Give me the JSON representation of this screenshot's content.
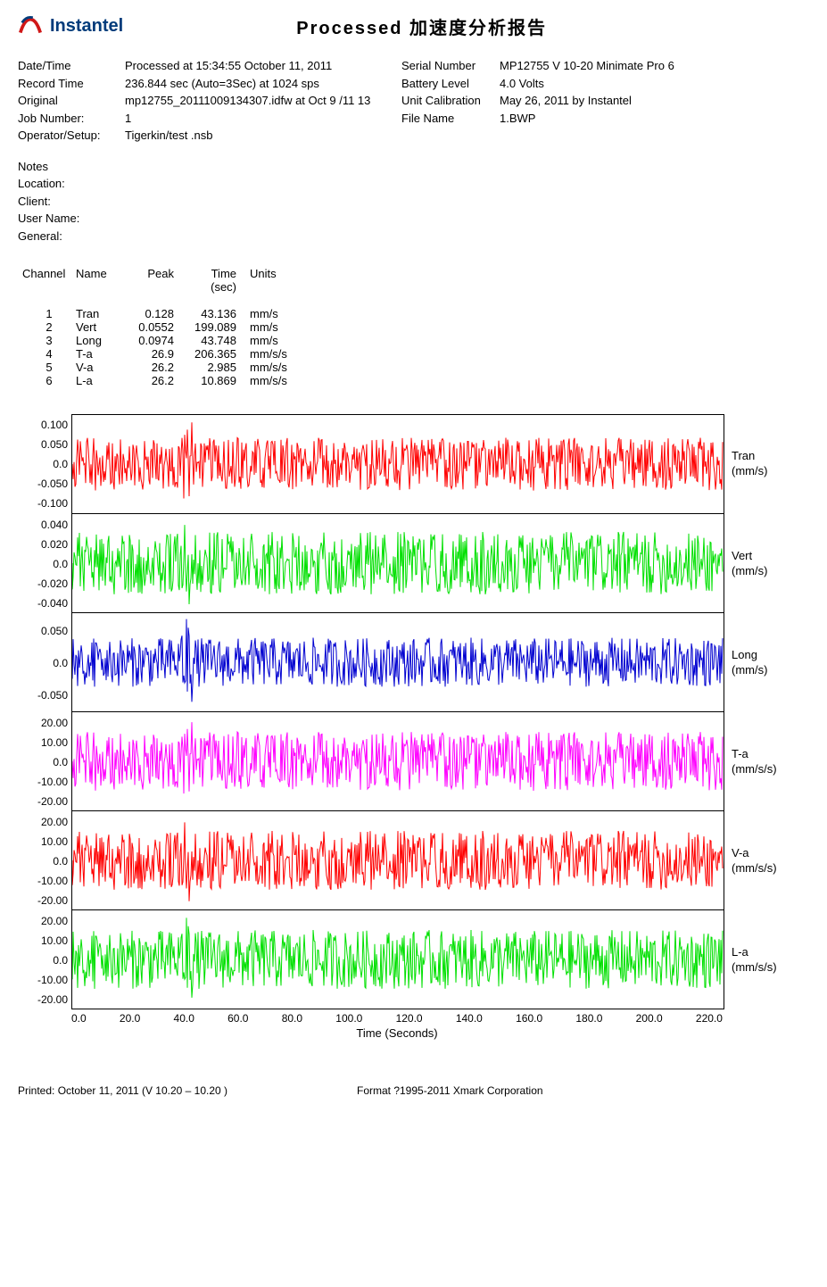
{
  "header": {
    "brand": "Instantel",
    "title": "Processed 加速度分析报告"
  },
  "meta": {
    "r1": {
      "l1": "Date/Time",
      "v1": "Processed at 15:34:55 October 11, 2011",
      "l2": "Serial Number",
      "v2": "MP12755 V 10-20 Minimate Pro 6"
    },
    "r2": {
      "l1": "Record Time",
      "v1": "236.844 sec (Auto=3Sec) at 1024 sps",
      "l2": "Battery Level",
      "v2": "4.0 Volts"
    },
    "r3": {
      "l1": "Original",
      "v1": "mp12755_20111009134307.idfw at Oct 9 /11 13",
      "l2": "Unit Calibration",
      "v2": "May 26, 2011 by Instantel"
    },
    "r4": {
      "l1": "Job Number:",
      "v1": "1",
      "l2": "File Name",
      "v2": "1.BWP"
    },
    "r5": {
      "l1": "Operator/Setup:",
      "v1": "Tigerkin/test  .nsb"
    }
  },
  "notes": {
    "n1": "Notes",
    "n2": "Location:",
    "n3": "Client:",
    "n4": "User Name:",
    "n5": "General:"
  },
  "table": {
    "headers": {
      "c1": "Channel",
      "c2": "Name",
      "c3": "Peak",
      "c4": "Time",
      "c4b": "(sec)",
      "c5": "Units"
    },
    "rows": [
      {
        "c1": "1",
        "c2": "Tran",
        "c3": "0.128",
        "c4": "43.136",
        "c5": "mm/s"
      },
      {
        "c1": "2",
        "c2": "Vert",
        "c3": "0.0552",
        "c4": "199.089",
        "c5": "mm/s"
      },
      {
        "c1": "3",
        "c2": "Long",
        "c3": "0.0974",
        "c4": "43.748",
        "c5": "mm/s"
      },
      {
        "c1": "4",
        "c2": "T-a",
        "c3": "26.9",
        "c4": "206.365",
        "c5": "mm/s/s"
      },
      {
        "c1": "5",
        "c2": "V-a",
        "c3": "26.2",
        "c4": "2.985",
        "c5": "mm/s/s"
      },
      {
        "c1": "6",
        "c2": "L-a",
        "c3": "26.2",
        "c4": "10.869",
        "c5": "mm/s/s"
      }
    ]
  },
  "charts": [
    {
      "name": "Tran",
      "unit": "(mm/s)",
      "color": "#ff0000",
      "yticks": [
        "0.100",
        "0.050",
        "0.0",
        "-0.050",
        "-0.100"
      ],
      "ylim": [
        -0.13,
        0.13
      ],
      "amp": 0.07,
      "spike": 0.12
    },
    {
      "name": "Vert",
      "unit": "(mm/s)",
      "color": "#00e000",
      "yticks": [
        "0.040",
        "0.020",
        "0.0",
        "-0.020",
        "-0.040"
      ],
      "ylim": [
        -0.055,
        0.055
      ],
      "amp": 0.035,
      "spike": 0.048
    },
    {
      "name": "Long",
      "unit": "(mm/s)",
      "color": "#0000d0",
      "yticks": [
        "0.050",
        "0.0",
        "-0.050"
      ],
      "ylim": [
        -0.1,
        0.1
      ],
      "amp": 0.05,
      "spike": 0.09
    },
    {
      "name": "T-a",
      "unit": "(mm/s/s)",
      "color": "#ff00ff",
      "yticks": [
        "20.00",
        "10.00",
        "0.0",
        "-10.00",
        "-20.00"
      ],
      "ylim": [
        -30,
        30
      ],
      "amp": 18,
      "spike": 26
    },
    {
      "name": "V-a",
      "unit": "(mm/s/s)",
      "color": "#ff0000",
      "yticks": [
        "20.00",
        "10.00",
        "0.0",
        "-10.00",
        "-20.00"
      ],
      "ylim": [
        -30,
        30
      ],
      "amp": 18,
      "spike": 26
    },
    {
      "name": "L-a",
      "unit": "(mm/s/s)",
      "color": "#00e000",
      "yticks": [
        "20.00",
        "10.00",
        "0.0",
        "-10.00",
        "-20.00"
      ],
      "ylim": [
        -30,
        30
      ],
      "amp": 18,
      "spike": 26
    }
  ],
  "xaxis": {
    "ticks": [
      "0.0",
      "20.0",
      "40.0",
      "60.0",
      "80.0",
      "100.0",
      "120.0",
      "140.0",
      "160.0",
      "180.0",
      "200.0",
      "220.0"
    ],
    "label": "Time (Seconds)",
    "max": 236.844
  },
  "footer": {
    "left": "Printed: October 11, 2011 (V 10.20 – 10.20 )",
    "right": "Format ?1995-2011 Xmark Corporation"
  }
}
